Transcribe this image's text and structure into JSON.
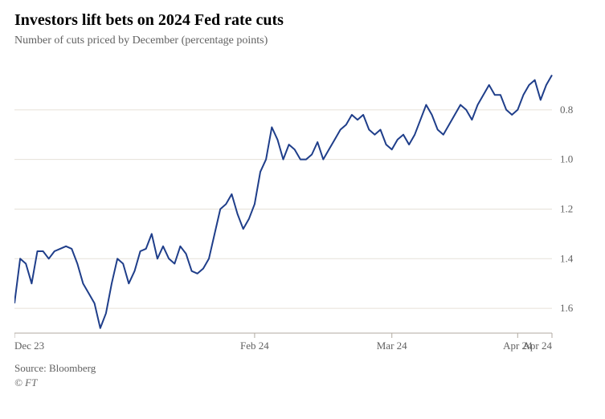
{
  "title": "Investors lift bets on 2024 Fed rate cuts",
  "subtitle": "Number of cuts priced by December (percentage points)",
  "source": "Source: Bloomberg",
  "copyright": "© FT",
  "chart": {
    "type": "line",
    "line_color": "#1f3e8a",
    "line_width": 2,
    "background_color": "#ffffff",
    "grid_color": "#e6e1d8",
    "axis_color": "#b0aaa0",
    "label_color": "#616161",
    "label_fontsize": 13,
    "inverted_y": true,
    "ylim": [
      0.6,
      1.7
    ],
    "ytick_values": [
      0.8,
      1.0,
      1.2,
      1.4,
      1.6
    ],
    "ytick_labels": [
      "0.8",
      "1.0",
      "1.2",
      "1.4",
      "1.6"
    ],
    "x_count": 95,
    "xticks": [
      {
        "index": 0,
        "label": "Dec 23"
      },
      {
        "index": 42,
        "label": "Feb 24"
      },
      {
        "index": 66,
        "label": "Mar 24"
      },
      {
        "index": 88,
        "label": "Apr 24"
      },
      {
        "index": 94,
        "label": "Apr 24"
      }
    ],
    "series": [
      1.58,
      1.4,
      1.42,
      1.5,
      1.37,
      1.37,
      1.4,
      1.37,
      1.36,
      1.35,
      1.36,
      1.42,
      1.5,
      1.54,
      1.58,
      1.68,
      1.62,
      1.5,
      1.4,
      1.42,
      1.5,
      1.45,
      1.37,
      1.36,
      1.3,
      1.4,
      1.35,
      1.4,
      1.42,
      1.35,
      1.38,
      1.45,
      1.46,
      1.44,
      1.4,
      1.3,
      1.2,
      1.18,
      1.14,
      1.22,
      1.28,
      1.24,
      1.18,
      1.05,
      1.0,
      0.87,
      0.92,
      1.0,
      0.94,
      0.96,
      1.0,
      1.0,
      0.98,
      0.93,
      1.0,
      0.96,
      0.92,
      0.88,
      0.86,
      0.82,
      0.84,
      0.82,
      0.88,
      0.9,
      0.88,
      0.94,
      0.96,
      0.92,
      0.9,
      0.94,
      0.9,
      0.84,
      0.78,
      0.82,
      0.88,
      0.9,
      0.86,
      0.82,
      0.78,
      0.8,
      0.84,
      0.78,
      0.74,
      0.7,
      0.74,
      0.74,
      0.8,
      0.82,
      0.8,
      0.74,
      0.7,
      0.68,
      0.76,
      0.7,
      0.66
    ]
  }
}
